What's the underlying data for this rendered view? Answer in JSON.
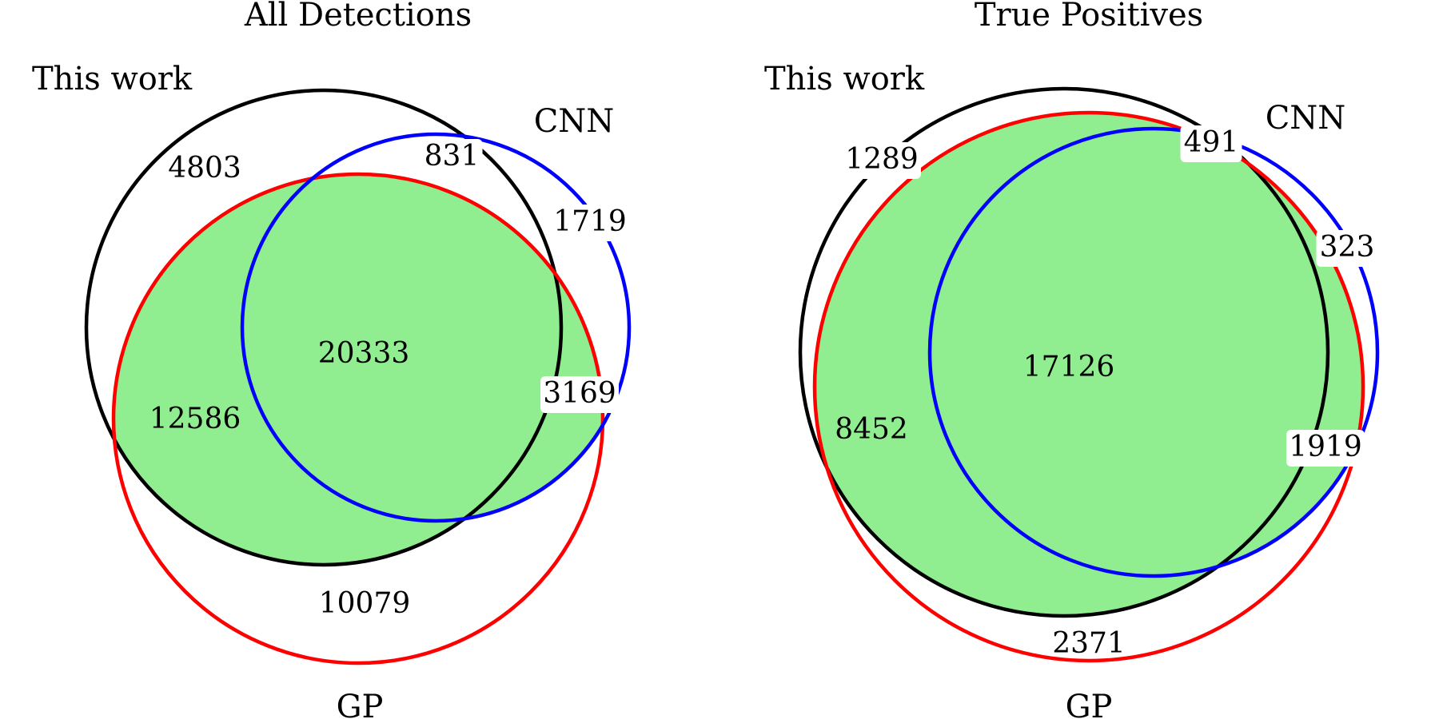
{
  "colors": {
    "this_work": "#000000",
    "cnn": "#0000ff",
    "gp": "#ff0000",
    "fill": "#90ee90",
    "label_box": "#ffffff"
  },
  "chart_data": [
    {
      "type": "venn",
      "title": "All Detections",
      "sets": [
        "This work",
        "CNN",
        "GP"
      ],
      "regions": {
        "this_work_only": 4803,
        "cnn_only": 1719,
        "gp_only": 10079,
        "this_work_and_cnn_only": 831,
        "this_work_and_gp_only": 12586,
        "cnn_and_gp_only": 3169,
        "all_three": 20333
      }
    },
    {
      "type": "venn",
      "title": "True Positives",
      "sets": [
        "This work",
        "CNN",
        "GP"
      ],
      "regions": {
        "this_work_only": 1289,
        "cnn_only": 323,
        "gp_only": 2371,
        "this_work_and_cnn_only": 491,
        "this_work_and_gp_only": 8452,
        "cnn_and_gp_only": 1919,
        "all_three": 17126
      }
    }
  ]
}
